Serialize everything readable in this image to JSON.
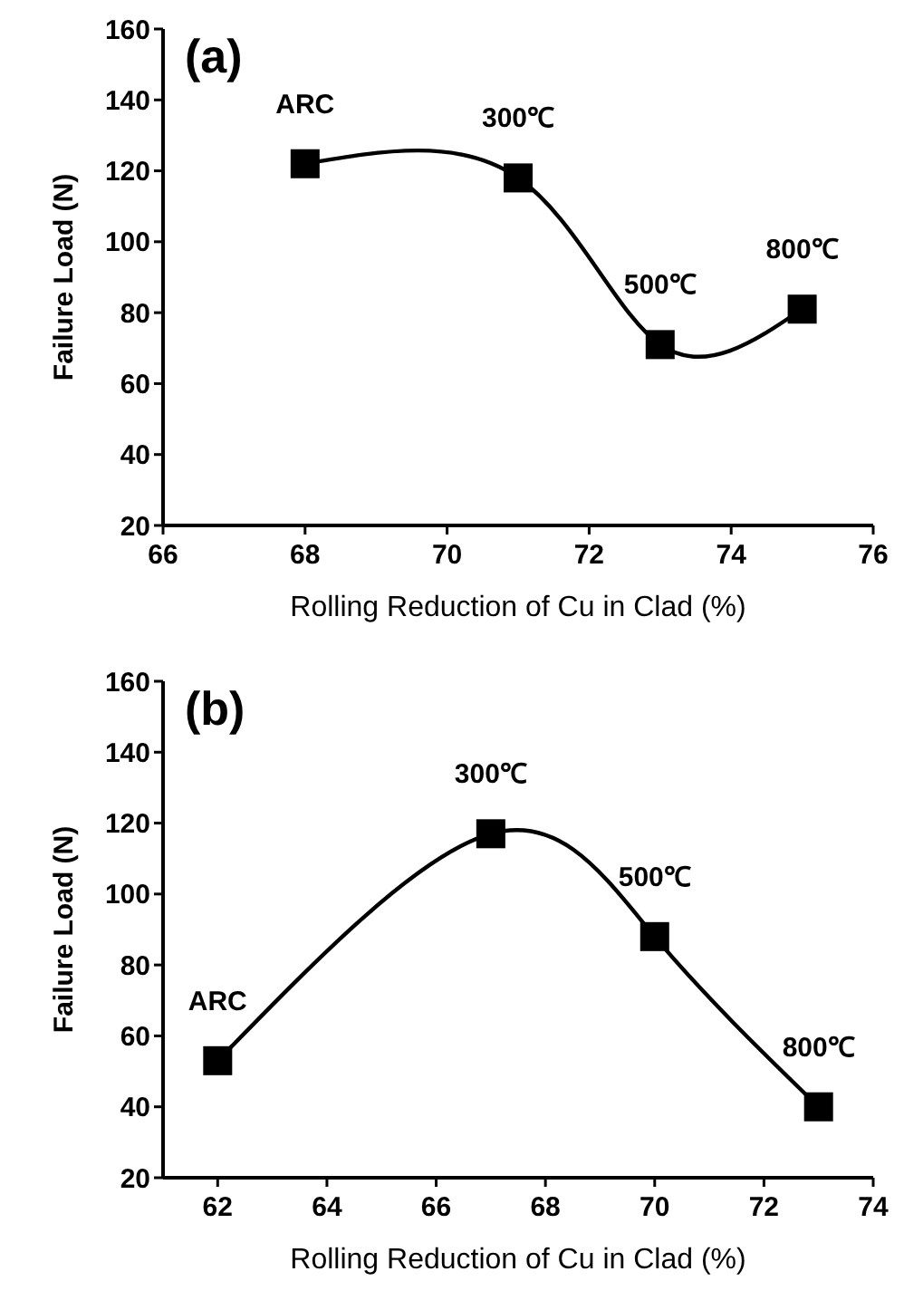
{
  "chart_data": [
    {
      "type": "line",
      "title": "(a)",
      "xlabel": "Rolling Reduction of Cu in Clad (%)",
      "ylabel": "Failure Load (N)",
      "x": [
        68,
        71,
        73,
        75
      ],
      "values": [
        122,
        118,
        71,
        81
      ],
      "color": "#000000",
      "marker": "square",
      "line_style": "solid",
      "xlim": [
        66,
        76
      ],
      "xticks": [
        66,
        68,
        70,
        72,
        74,
        76
      ],
      "ylim": [
        20,
        160
      ],
      "yticks": [
        20,
        40,
        60,
        80,
        100,
        120,
        140,
        160
      ],
      "annotations": [
        {
          "text": "ARC",
          "x": 68,
          "y": 122
        },
        {
          "text": "300℃",
          "x": 71,
          "y": 118
        },
        {
          "text": "500℃",
          "x": 73,
          "y": 71
        },
        {
          "text": "800℃",
          "x": 75,
          "y": 81
        }
      ]
    },
    {
      "type": "line",
      "title": "(b)",
      "xlabel": "Rolling Reduction of Cu in Clad (%)",
      "ylabel": "Failure Load (N)",
      "x": [
        62,
        67,
        70,
        73
      ],
      "values": [
        53,
        117,
        88,
        40
      ],
      "color": "#000000",
      "marker": "square",
      "line_style": "solid",
      "xlim": [
        61,
        74
      ],
      "xticks": [
        62,
        64,
        66,
        68,
        70,
        72,
        74
      ],
      "ylim": [
        20,
        160
      ],
      "yticks": [
        20,
        40,
        60,
        80,
        100,
        120,
        140,
        160
      ],
      "annotations": [
        {
          "text": "ARC",
          "x": 62,
          "y": 53
        },
        {
          "text": "300℃",
          "x": 67,
          "y": 117
        },
        {
          "text": "500℃",
          "x": 70,
          "y": 88
        },
        {
          "text": "800℃",
          "x": 73,
          "y": 40
        }
      ]
    }
  ]
}
